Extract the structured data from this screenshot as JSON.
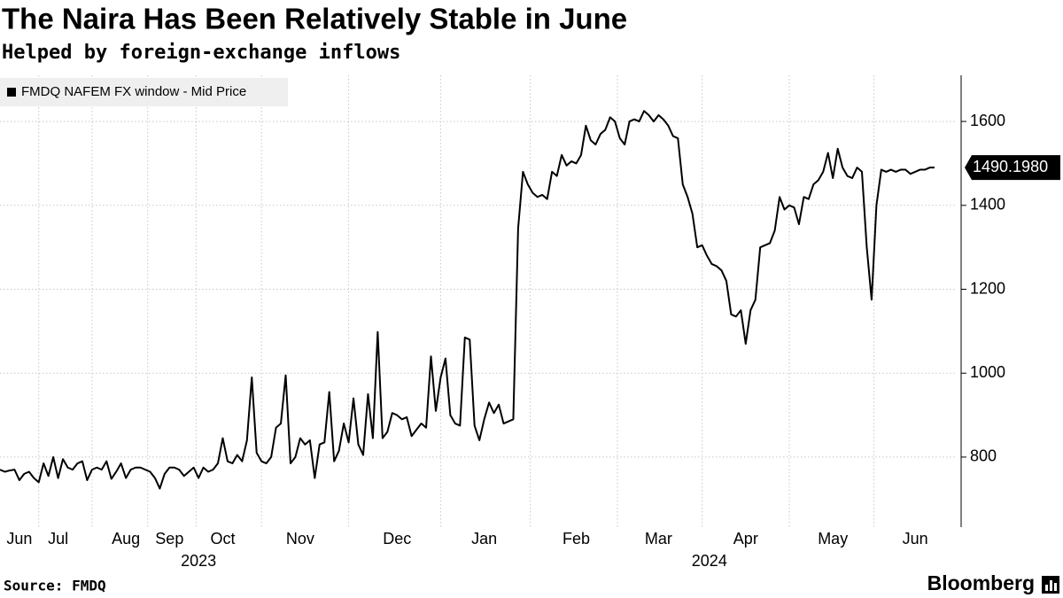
{
  "chart_data": {
    "type": "line",
    "title": "The Naira Has Been Relatively Stable in June",
    "subtitle": "Helped by foreign-exchange inflows",
    "source": "Source: FMDQ",
    "brand": "Bloomberg",
    "categories": [
      null,
      null,
      null,
      null,
      "Jun",
      null,
      null,
      null,
      null,
      null,
      null,
      null,
      "Jul",
      null,
      null,
      null,
      null,
      null,
      null,
      null,
      null,
      null,
      null,
      null,
      null,
      null,
      "Aug",
      null,
      null,
      null,
      null,
      null,
      null,
      null,
      null,
      "Sep",
      null,
      null,
      null,
      null,
      null,
      null,
      null,
      null,
      null,
      null,
      "Oct",
      null,
      null,
      null,
      null,
      null,
      null,
      null,
      null,
      null,
      null,
      null,
      null,
      null,
      null,
      null,
      "Nov",
      null,
      null,
      null,
      null,
      null,
      null,
      null,
      null,
      null,
      null,
      null,
      null,
      null,
      null,
      null,
      null,
      null,
      null,
      null,
      "Dec",
      null,
      null,
      null,
      null,
      null,
      null,
      null,
      null,
      null,
      null,
      null,
      null,
      null,
      null,
      null,
      null,
      null,
      "Jan",
      null,
      null,
      null,
      null,
      null,
      null,
      null,
      null,
      null,
      null,
      null,
      null,
      null,
      null,
      null,
      null,
      null,
      null,
      "Feb",
      null,
      null,
      null,
      null,
      null,
      null,
      null,
      null,
      null,
      null,
      null,
      null,
      null,
      null,
      null,
      null,
      "Mar",
      null,
      null,
      null,
      null,
      null,
      null,
      null,
      null,
      null,
      null,
      null,
      null,
      null,
      null,
      null,
      null,
      null,
      "Apr",
      null,
      null,
      null,
      null,
      null,
      null,
      null,
      null,
      null,
      null,
      null,
      null,
      null,
      null,
      null,
      null,
      null,
      "May",
      null,
      null,
      null,
      null,
      null,
      null,
      null,
      null,
      null,
      null,
      null,
      null,
      null,
      null,
      null,
      null,
      "Jun",
      null,
      null,
      null,
      null
    ],
    "category_years": [
      null,
      null,
      null,
      null,
      "2023",
      null,
      null,
      null,
      null,
      null,
      null,
      null,
      "2023",
      null,
      null,
      null,
      null,
      null,
      null,
      null,
      null,
      null,
      null,
      null,
      null,
      null,
      "2023",
      null,
      null,
      null,
      null,
      null,
      null,
      null,
      null,
      "2023",
      null,
      null,
      null,
      null,
      null,
      null,
      null,
      null,
      null,
      null,
      "2023",
      null,
      null,
      null,
      null,
      null,
      null,
      null,
      null,
      null,
      null,
      null,
      null,
      null,
      null,
      null,
      "2023",
      null,
      null,
      null,
      null,
      null,
      null,
      null,
      null,
      null,
      null,
      null,
      null,
      null,
      null,
      null,
      null,
      null,
      null,
      null,
      "2023",
      null,
      null,
      null,
      null,
      null,
      null,
      null,
      null,
      null,
      null,
      null,
      null,
      null,
      null,
      null,
      null,
      null,
      "2024",
      null,
      null,
      null,
      null,
      null,
      null,
      null,
      null,
      null,
      null,
      null,
      null,
      null,
      null,
      null,
      null,
      null,
      null,
      "2024",
      null,
      null,
      null,
      null,
      null,
      null,
      null,
      null,
      null,
      null,
      null,
      null,
      null,
      null,
      null,
      null,
      "2024",
      null,
      null,
      null,
      null,
      null,
      null,
      null,
      null,
      null,
      null,
      null,
      null,
      null,
      null,
      null,
      null,
      null,
      "2024",
      null,
      null,
      null,
      null,
      null,
      null,
      null,
      null,
      null,
      null,
      null,
      null,
      null,
      null,
      null,
      null,
      null,
      "2024",
      null,
      null,
      null,
      null,
      null,
      null,
      null,
      null,
      null,
      null,
      null,
      null,
      null,
      null,
      null,
      null,
      "2024",
      null,
      null,
      null,
      null
    ],
    "series": [
      {
        "name": "FMDQ NAFEM FX window - Mid Price",
        "color": "#000000",
        "values": [
          770,
          765,
          768,
          770,
          745,
          760,
          765,
          750,
          740,
          785,
          755,
          800,
          750,
          795,
          775,
          770,
          785,
          790,
          745,
          770,
          775,
          770,
          790,
          748,
          765,
          785,
          750,
          770,
          775,
          775,
          770,
          765,
          750,
          725,
          760,
          775,
          775,
          770,
          755,
          765,
          775,
          750,
          775,
          765,
          770,
          785,
          845,
          790,
          785,
          805,
          790,
          840,
          990,
          810,
          790,
          785,
          800,
          870,
          880,
          995,
          785,
          800,
          845,
          830,
          840,
          750,
          830,
          835,
          955,
          790,
          815,
          880,
          835,
          940,
          830,
          805,
          950,
          845,
          1098,
          845,
          860,
          905,
          900,
          890,
          895,
          850,
          865,
          880,
          870,
          1040,
          910,
          990,
          1035,
          900,
          880,
          875,
          1085,
          1080,
          875,
          840,
          890,
          930,
          905,
          925,
          880,
          885,
          890,
          1345,
          1480,
          1450,
          1430,
          1420,
          1425,
          1415,
          1480,
          1470,
          1520,
          1495,
          1505,
          1500,
          1520,
          1590,
          1555,
          1545,
          1570,
          1580,
          1610,
          1600,
          1560,
          1545,
          1600,
          1605,
          1600,
          1625,
          1615,
          1600,
          1615,
          1605,
          1590,
          1565,
          1560,
          1450,
          1420,
          1380,
          1300,
          1305,
          1280,
          1260,
          1255,
          1245,
          1220,
          1140,
          1135,
          1150,
          1070,
          1150,
          1175,
          1300,
          1305,
          1310,
          1340,
          1420,
          1390,
          1400,
          1395,
          1355,
          1420,
          1415,
          1450,
          1460,
          1480,
          1525,
          1465,
          1535,
          1490,
          1470,
          1465,
          1490,
          1480,
          1300,
          1175,
          1400,
          1485,
          1480,
          1485,
          1480,
          1485,
          1485,
          1475,
          1480,
          1485,
          1485,
          1490,
          1490.198
        ],
        "value_labels": [
          null,
          null,
          null,
          null,
          null,
          null,
          null,
          null,
          null,
          null,
          null,
          null,
          null,
          null,
          null,
          null,
          null,
          null,
          null,
          null,
          null,
          null,
          null,
          null,
          null,
          null,
          null,
          null,
          null,
          null,
          null,
          null,
          null,
          null,
          null,
          null,
          null,
          null,
          null,
          null,
          null,
          null,
          null,
          null,
          null,
          null,
          null,
          null,
          null,
          null,
          null,
          null,
          null,
          null,
          null,
          null,
          null,
          null,
          null,
          null,
          null,
          null,
          null,
          null,
          null,
          null,
          null,
          null,
          null,
          null,
          null,
          null,
          null,
          null,
          null,
          null,
          null,
          null,
          null,
          null,
          null,
          null,
          null,
          null,
          null,
          null,
          null,
          null,
          null,
          null,
          null,
          null,
          null,
          null,
          null,
          null,
          null,
          null,
          null,
          null,
          null,
          null,
          null,
          null,
          null,
          null,
          null,
          null,
          null,
          null,
          null,
          null,
          null,
          null,
          null,
          null,
          null,
          null,
          null,
          null,
          null,
          null,
          null,
          null,
          null,
          null,
          null,
          null,
          null,
          null,
          null,
          null,
          null,
          null,
          null,
          null,
          null,
          null,
          null,
          null,
          null,
          null,
          null,
          null,
          null,
          null,
          null,
          null,
          null,
          null,
          null,
          null,
          null,
          null,
          null,
          null,
          null,
          null,
          null,
          null,
          null,
          null,
          null,
          null,
          null,
          null,
          null,
          null,
          null,
          null,
          null,
          null,
          null,
          null,
          null,
          null,
          null,
          null,
          null,
          null,
          null,
          null,
          null,
          null,
          null,
          null,
          null,
          null,
          null,
          null,
          null,
          null,
          null,
          "1490.1980"
        ]
      }
    ],
    "ylim": [
      633,
      1710
    ],
    "yticks": [
      800,
      1000,
      1200,
      1400,
      1600
    ],
    "grid": true,
    "legend": "top-left"
  }
}
